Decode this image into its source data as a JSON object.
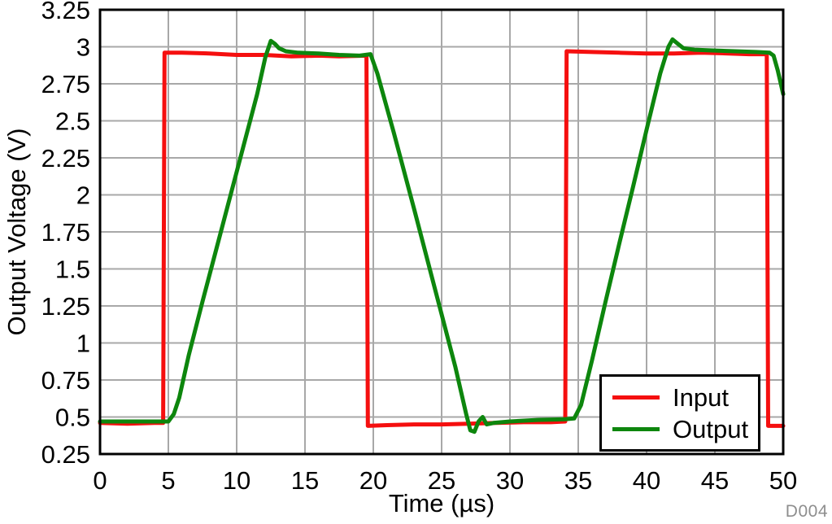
{
  "chart_data": {
    "type": "line",
    "xlabel": "Time (µs)",
    "ylabel": "Output Voltage (V)",
    "xlim": [
      0,
      50
    ],
    "xstep": 5,
    "ylim": [
      0.25,
      3.25
    ],
    "ystep": 0.25,
    "grid": true,
    "grid_color": "#a8a8a8",
    "frame_color": "#000000",
    "legend_position": "bottom-right",
    "watermark": "D004",
    "watermark_color": "#8e8e8e",
    "series": [
      {
        "name": "Input",
        "color": "#f50f0f",
        "points": [
          [
            0,
            0.46
          ],
          [
            2,
            0.455
          ],
          [
            4,
            0.46
          ],
          [
            4.62,
            0.46
          ],
          [
            4.72,
            2.96
          ],
          [
            6,
            2.96
          ],
          [
            8,
            2.955
          ],
          [
            10,
            2.945
          ],
          [
            12,
            2.945
          ],
          [
            14,
            2.935
          ],
          [
            16,
            2.94
          ],
          [
            17.5,
            2.935
          ],
          [
            19.5,
            2.94
          ],
          [
            19.6,
            0.44
          ],
          [
            21,
            0.445
          ],
          [
            23,
            0.45
          ],
          [
            25,
            0.45
          ],
          [
            27,
            0.455
          ],
          [
            29,
            0.46
          ],
          [
            31,
            0.465
          ],
          [
            33,
            0.465
          ],
          [
            34.05,
            0.47
          ],
          [
            34.15,
            2.97
          ],
          [
            36,
            2.965
          ],
          [
            38,
            2.96
          ],
          [
            40,
            2.955
          ],
          [
            42,
            2.955
          ],
          [
            44,
            2.96
          ],
          [
            46,
            2.955
          ],
          [
            47.5,
            2.95
          ],
          [
            48.8,
            2.95
          ],
          [
            48.9,
            0.44
          ],
          [
            49.5,
            0.44
          ],
          [
            50,
            0.44
          ]
        ]
      },
      {
        "name": "Output",
        "color": "#0d860d",
        "points": [
          [
            0,
            0.47
          ],
          [
            2,
            0.47
          ],
          [
            4,
            0.47
          ],
          [
            5.0,
            0.47
          ],
          [
            5.4,
            0.52
          ],
          [
            5.8,
            0.63
          ],
          [
            6.5,
            0.92
          ],
          [
            7.5,
            1.28
          ],
          [
            8.5,
            1.63
          ],
          [
            9.5,
            1.98
          ],
          [
            10.5,
            2.33
          ],
          [
            11.5,
            2.68
          ],
          [
            12.1,
            2.93
          ],
          [
            12.5,
            3.04
          ],
          [
            12.8,
            3.02
          ],
          [
            13.1,
            2.99
          ],
          [
            13.6,
            2.97
          ],
          [
            14.5,
            2.96
          ],
          [
            16,
            2.955
          ],
          [
            17.5,
            2.945
          ],
          [
            19.0,
            2.94
          ],
          [
            19.8,
            2.95
          ],
          [
            20.3,
            2.82
          ],
          [
            21.5,
            2.42
          ],
          [
            23,
            1.9
          ],
          [
            24.5,
            1.37
          ],
          [
            26,
            0.84
          ],
          [
            26.8,
            0.52
          ],
          [
            27.1,
            0.41
          ],
          [
            27.4,
            0.4
          ],
          [
            27.7,
            0.47
          ],
          [
            28.0,
            0.5
          ],
          [
            28.3,
            0.45
          ],
          [
            28.8,
            0.46
          ],
          [
            30,
            0.47
          ],
          [
            32,
            0.48
          ],
          [
            34,
            0.485
          ],
          [
            34.7,
            0.49
          ],
          [
            35.2,
            0.58
          ],
          [
            36,
            0.88
          ],
          [
            37,
            1.28
          ],
          [
            38,
            1.67
          ],
          [
            39,
            2.05
          ],
          [
            40,
            2.44
          ],
          [
            41,
            2.82
          ],
          [
            41.6,
            3.0
          ],
          [
            41.9,
            3.05
          ],
          [
            42.3,
            3.02
          ],
          [
            42.7,
            2.99
          ],
          [
            43.5,
            2.98
          ],
          [
            45,
            2.975
          ],
          [
            46.5,
            2.97
          ],
          [
            48,
            2.965
          ],
          [
            49.0,
            2.96
          ],
          [
            49.3,
            2.94
          ],
          [
            49.6,
            2.84
          ],
          [
            50,
            2.68
          ]
        ]
      }
    ]
  }
}
